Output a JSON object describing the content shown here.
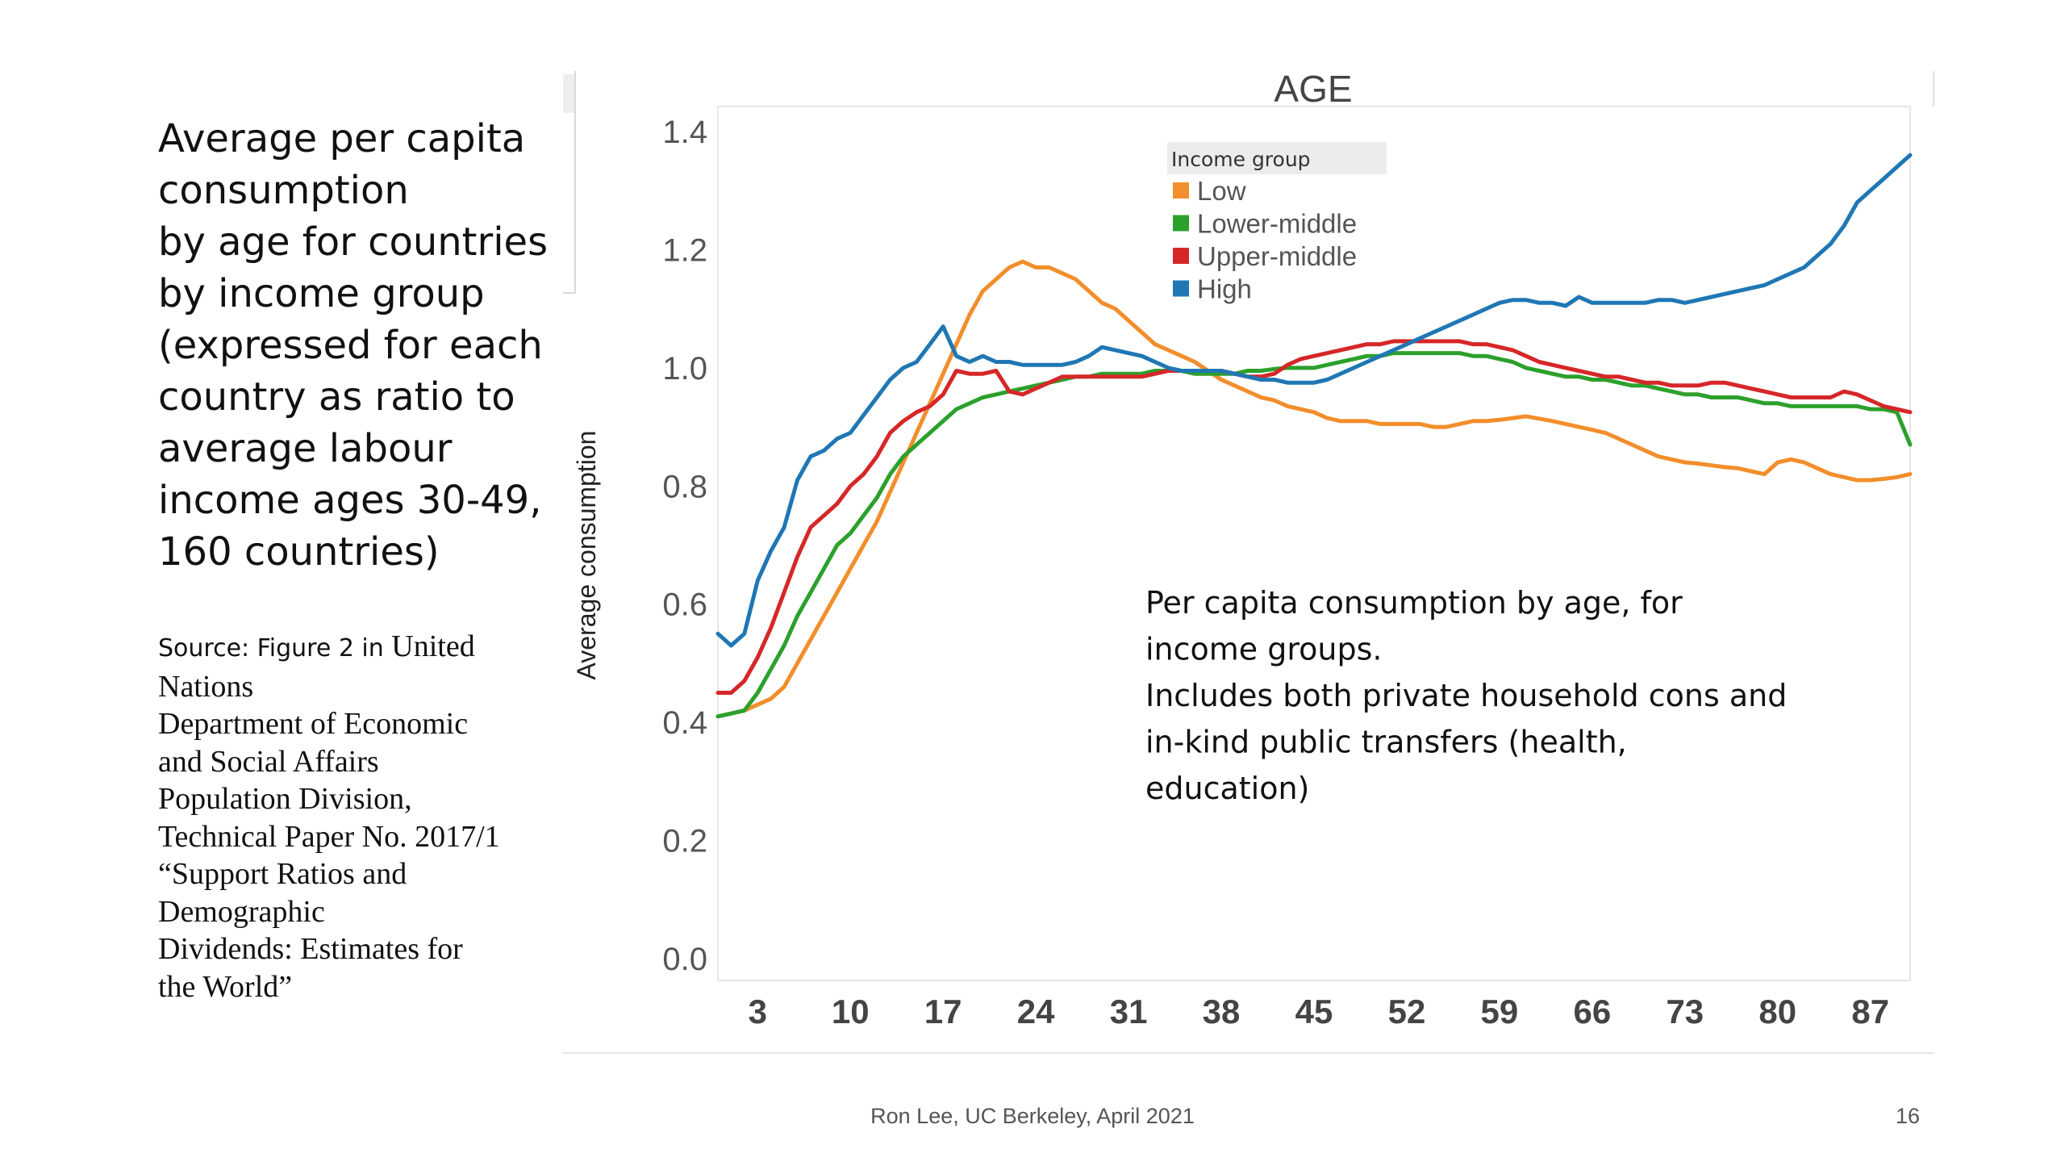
{
  "slide": {
    "left_text_lines": [
      "Average per capita",
      "consumption",
      "by age for countries",
      "by income group",
      "(expressed for each",
      "country as ratio to",
      "average labour",
      "income ages 30-49,",
      "160 countries)"
    ],
    "source_prefix": "Source: Figure 2 in",
    "source_first": "United",
    "source_lines": [
      "Nations",
      "Department of Economic",
      "and Social Affairs",
      "Population Division,",
      "Technical Paper No. 2017/1",
      "“Support Ratios and",
      "Demographic",
      "Dividends: Estimates for",
      "the World”"
    ],
    "footer": "Ron Lee, UC Berkeley, April 2021",
    "page_number": "16"
  },
  "chart_data": {
    "type": "line",
    "title": "AGE",
    "ylabel": "Average consumption",
    "xlabel": "",
    "ylim": [
      0.0,
      1.4
    ],
    "xlim": [
      0,
      90
    ],
    "yticks": [
      0.0,
      0.2,
      0.4,
      0.6,
      0.8,
      1.0,
      1.2,
      1.4
    ],
    "xticks": [
      3,
      10,
      17,
      24,
      31,
      38,
      45,
      52,
      59,
      66,
      73,
      80,
      87
    ],
    "legend": {
      "title": "Income group",
      "position": "top-center"
    },
    "annotation": [
      "Per capita consumption by age, for",
      "income groups.",
      "Includes both private household cons and",
      "in-kind public transfers (health,",
      "education)"
    ],
    "x": [
      0,
      1,
      2,
      3,
      4,
      5,
      6,
      7,
      8,
      9,
      10,
      11,
      12,
      13,
      14,
      15,
      16,
      17,
      18,
      19,
      20,
      21,
      22,
      23,
      24,
      25,
      26,
      27,
      28,
      29,
      30,
      31,
      32,
      33,
      34,
      35,
      36,
      37,
      38,
      39,
      40,
      41,
      42,
      43,
      44,
      45,
      46,
      47,
      48,
      49,
      50,
      51,
      52,
      53,
      54,
      55,
      56,
      57,
      58,
      59,
      60,
      61,
      62,
      63,
      64,
      65,
      66,
      67,
      68,
      69,
      70,
      71,
      72,
      73,
      74,
      75,
      76,
      77,
      78,
      79,
      80,
      81,
      82,
      83,
      84,
      85,
      86,
      87,
      88,
      89,
      90
    ],
    "series": [
      {
        "name": "Low",
        "color": "#f28e2b",
        "values": [
          0.41,
          0.415,
          0.42,
          0.43,
          0.44,
          0.46,
          0.5,
          0.54,
          0.58,
          0.62,
          0.66,
          0.7,
          0.74,
          0.79,
          0.84,
          0.89,
          0.94,
          0.99,
          1.04,
          1.09,
          1.13,
          1.15,
          1.17,
          1.18,
          1.17,
          1.17,
          1.16,
          1.15,
          1.13,
          1.11,
          1.1,
          1.08,
          1.06,
          1.04,
          1.03,
          1.02,
          1.01,
          0.995,
          0.98,
          0.97,
          0.96,
          0.95,
          0.945,
          0.935,
          0.93,
          0.925,
          0.915,
          0.91,
          0.91,
          0.91,
          0.905,
          0.905,
          0.905,
          0.905,
          0.9,
          0.9,
          0.905,
          0.91,
          0.91,
          0.912,
          0.915,
          0.918,
          0.914,
          0.91,
          0.905,
          0.9,
          0.895,
          0.89,
          0.88,
          0.87,
          0.86,
          0.85,
          0.845,
          0.84,
          0.838,
          0.835,
          0.832,
          0.83,
          0.825,
          0.82,
          0.84,
          0.845,
          0.84,
          0.83,
          0.82,
          0.815,
          0.81,
          0.81,
          0.812,
          0.815,
          0.82
        ]
      },
      {
        "name": "Lower-middle",
        "color": "#2ca02c",
        "values": [
          0.41,
          0.415,
          0.42,
          0.45,
          0.49,
          0.53,
          0.58,
          0.62,
          0.66,
          0.7,
          0.72,
          0.75,
          0.78,
          0.82,
          0.85,
          0.87,
          0.89,
          0.91,
          0.93,
          0.94,
          0.95,
          0.955,
          0.96,
          0.965,
          0.97,
          0.975,
          0.98,
          0.985,
          0.985,
          0.99,
          0.99,
          0.99,
          0.99,
          0.995,
          0.995,
          0.995,
          0.99,
          0.99,
          0.99,
          0.99,
          0.995,
          0.995,
          0.998,
          1.0,
          1.0,
          1.0,
          1.005,
          1.01,
          1.015,
          1.02,
          1.02,
          1.025,
          1.025,
          1.025,
          1.025,
          1.025,
          1.025,
          1.02,
          1.02,
          1.015,
          1.01,
          1.0,
          0.995,
          0.99,
          0.985,
          0.985,
          0.98,
          0.98,
          0.975,
          0.97,
          0.97,
          0.965,
          0.96,
          0.955,
          0.955,
          0.95,
          0.95,
          0.95,
          0.945,
          0.94,
          0.94,
          0.935,
          0.935,
          0.935,
          0.935,
          0.935,
          0.935,
          0.93,
          0.93,
          0.925,
          0.87
        ]
      },
      {
        "name": "Upper-middle",
        "color": "#d62728",
        "values": [
          0.45,
          0.45,
          0.47,
          0.51,
          0.56,
          0.62,
          0.68,
          0.73,
          0.75,
          0.77,
          0.8,
          0.82,
          0.85,
          0.89,
          0.91,
          0.925,
          0.935,
          0.955,
          0.995,
          0.99,
          0.99,
          0.995,
          0.96,
          0.955,
          0.965,
          0.975,
          0.985,
          0.985,
          0.985,
          0.985,
          0.985,
          0.985,
          0.985,
          0.99,
          0.995,
          0.995,
          0.995,
          0.995,
          0.995,
          0.99,
          0.985,
          0.985,
          0.99,
          1.005,
          1.015,
          1.02,
          1.025,
          1.03,
          1.035,
          1.04,
          1.04,
          1.045,
          1.045,
          1.045,
          1.045,
          1.045,
          1.045,
          1.04,
          1.04,
          1.035,
          1.03,
          1.02,
          1.01,
          1.005,
          1.0,
          0.995,
          0.99,
          0.985,
          0.985,
          0.98,
          0.975,
          0.975,
          0.97,
          0.97,
          0.97,
          0.975,
          0.975,
          0.97,
          0.965,
          0.96,
          0.955,
          0.95,
          0.95,
          0.95,
          0.95,
          0.96,
          0.955,
          0.945,
          0.935,
          0.93,
          0.925
        ]
      },
      {
        "name": "High",
        "color": "#1f77b4",
        "values": [
          0.55,
          0.53,
          0.55,
          0.64,
          0.69,
          0.73,
          0.81,
          0.85,
          0.86,
          0.88,
          0.89,
          0.92,
          0.95,
          0.98,
          1.0,
          1.01,
          1.04,
          1.07,
          1.02,
          1.01,
          1.02,
          1.01,
          1.01,
          1.005,
          1.005,
          1.005,
          1.005,
          1.01,
          1.02,
          1.035,
          1.03,
          1.025,
          1.02,
          1.01,
          1.0,
          0.995,
          0.995,
          0.995,
          0.995,
          0.99,
          0.985,
          0.98,
          0.98,
          0.975,
          0.975,
          0.975,
          0.98,
          0.99,
          1.0,
          1.01,
          1.02,
          1.03,
          1.04,
          1.05,
          1.06,
          1.07,
          1.08,
          1.09,
          1.1,
          1.11,
          1.115,
          1.115,
          1.11,
          1.11,
          1.105,
          1.12,
          1.11,
          1.11,
          1.11,
          1.11,
          1.11,
          1.115,
          1.115,
          1.11,
          1.115,
          1.12,
          1.125,
          1.13,
          1.135,
          1.14,
          1.15,
          1.16,
          1.17,
          1.19,
          1.21,
          1.24,
          1.28,
          1.3,
          1.32,
          1.34,
          1.36
        ]
      }
    ]
  }
}
